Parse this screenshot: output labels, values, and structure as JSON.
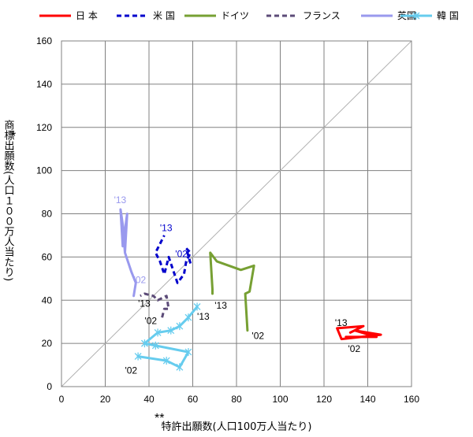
{
  "chart_data": {
    "type": "line",
    "xlabel": "特許出願数(人口100万人当たり)",
    "xlabel_mark": "**",
    "ylabel": "商標出願数(人口１００万人当たり)",
    "ylabel_mark": "*",
    "xlim": [
      0,
      160
    ],
    "ylim": [
      0,
      160
    ],
    "xticks": [
      0,
      20,
      40,
      60,
      80,
      100,
      120,
      140,
      160
    ],
    "yticks": [
      0,
      20,
      40,
      60,
      80,
      100,
      120,
      140,
      160
    ],
    "grid": true,
    "legend_position": "top",
    "diagonal_reference": true,
    "series": [
      {
        "name": "日 本",
        "color": "#ff0000",
        "style": "solid",
        "marker": "none",
        "points": [
          [
            130,
            23
          ],
          [
            144,
            23
          ],
          [
            134,
            26
          ],
          [
            146,
            24
          ],
          [
            128,
            22
          ],
          [
            126,
            27
          ],
          [
            138,
            28
          ],
          [
            132,
            25
          ]
        ],
        "labels": [
          {
            "text": "'02",
            "x": 131,
            "y": 16
          },
          {
            "text": "'13",
            "x": 125,
            "y": 28
          }
        ]
      },
      {
        "name": "米 国",
        "color": "#0000cc",
        "style": "dashed",
        "marker": "none",
        "points": [
          [
            59,
            57
          ],
          [
            57,
            64
          ],
          [
            59,
            62
          ],
          [
            57,
            58
          ],
          [
            56,
            52
          ],
          [
            53,
            48
          ],
          [
            49,
            60
          ],
          [
            47,
            52
          ],
          [
            45,
            58
          ],
          [
            43,
            62
          ],
          [
            47,
            70
          ]
        ],
        "labels": [
          {
            "text": "'02",
            "x": 52,
            "y": 60
          },
          {
            "text": "'13",
            "x": 45,
            "y": 72
          }
        ]
      },
      {
        "name": "ドイツ",
        "color": "#77a033",
        "style": "solid",
        "marker": "none",
        "points": [
          [
            85,
            26
          ],
          [
            84,
            43
          ],
          [
            86,
            44
          ],
          [
            88,
            56
          ],
          [
            82,
            54
          ],
          [
            71,
            58
          ],
          [
            68,
            62
          ],
          [
            69,
            45
          ],
          [
            69,
            43
          ]
        ],
        "labels": [
          {
            "text": "'02",
            "x": 87,
            "y": 22
          },
          {
            "text": "'13",
            "x": 70,
            "y": 36
          }
        ]
      },
      {
        "name": "フランス",
        "color": "#5c4b78",
        "style": "dashed",
        "marker": "none",
        "points": [
          [
            46,
            32
          ],
          [
            47,
            36
          ],
          [
            49,
            36
          ],
          [
            48,
            42
          ],
          [
            44,
            40
          ],
          [
            42,
            42
          ],
          [
            38,
            43
          ],
          [
            36,
            42
          ]
        ],
        "labels": [
          {
            "text": "'02",
            "x": 38,
            "y": 29
          },
          {
            "text": "'13",
            "x": 35,
            "y": 37
          }
        ]
      },
      {
        "name": "英国",
        "color": "#9999ee",
        "style": "solid",
        "marker": "none",
        "points": [
          [
            33,
            42
          ],
          [
            34,
            48
          ],
          [
            32,
            53
          ],
          [
            29,
            62
          ],
          [
            28,
            75
          ],
          [
            27,
            82
          ],
          [
            28,
            65
          ],
          [
            30,
            80
          ],
          [
            29,
            62
          ]
        ],
        "labels": [
          {
            "text": "'02",
            "x": 33,
            "y": 48
          },
          {
            "text": "'13",
            "x": 24,
            "y": 85
          }
        ]
      },
      {
        "name": "韓 国",
        "color": "#66ccee",
        "style": "solid",
        "marker": "star",
        "points": [
          [
            35,
            14
          ],
          [
            48,
            12
          ],
          [
            54,
            9
          ],
          [
            58,
            16
          ],
          [
            43,
            19
          ],
          [
            38,
            20
          ],
          [
            44,
            25
          ],
          [
            50,
            26
          ],
          [
            54,
            28
          ],
          [
            58,
            32
          ],
          [
            62,
            37
          ]
        ],
        "labels": [
          {
            "text": "'02",
            "x": 29,
            "y": 6
          },
          {
            "text": "'13",
            "x": 62,
            "y": 31
          }
        ]
      }
    ]
  }
}
